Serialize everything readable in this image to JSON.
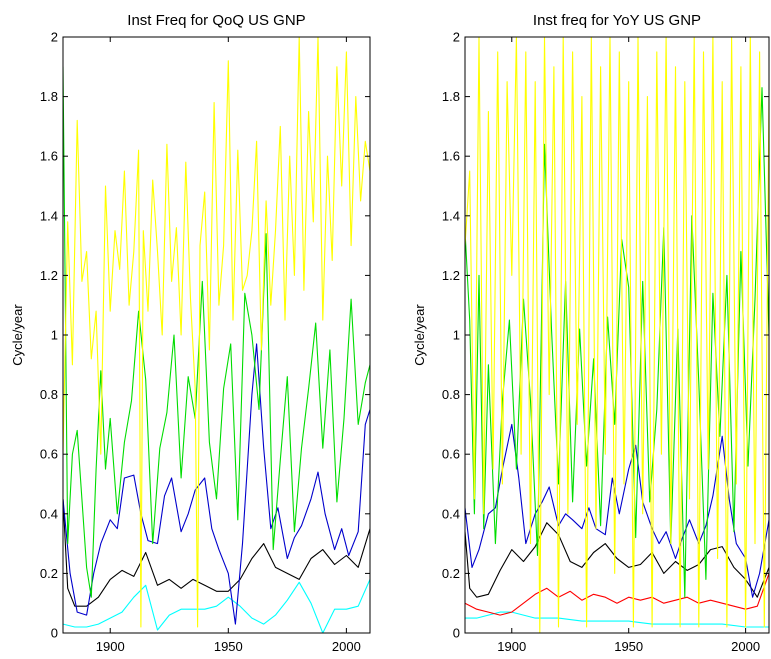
{
  "chart_data": [
    {
      "type": "line",
      "title": "Inst Freq for QoQ US GNP",
      "xlabel": "",
      "ylabel": "Cycle/year",
      "xlim": [
        1880,
        2010
      ],
      "ylim": [
        0,
        2
      ],
      "xticks": [
        1900,
        1950,
        2000
      ],
      "yticks": [
        0,
        0.2,
        0.4,
        0.6,
        0.8,
        1,
        1.2,
        1.4,
        1.6,
        1.8,
        2
      ],
      "grid": false,
      "series": [
        {
          "color": "#00FFFF",
          "x": [
            1880,
            1885,
            1890,
            1895,
            1900,
            1905,
            1910,
            1915,
            1920,
            1925,
            1930,
            1935,
            1940,
            1945,
            1950,
            1955,
            1960,
            1965,
            1970,
            1975,
            1980,
            1985,
            1990,
            1995,
            2000,
            2005,
            2010
          ],
          "y": [
            0.03,
            0.02,
            0.02,
            0.03,
            0.05,
            0.07,
            0.12,
            0.16,
            0.01,
            0.06,
            0.08,
            0.08,
            0.08,
            0.09,
            0.12,
            0.09,
            0.05,
            0.03,
            0.06,
            0.11,
            0.17,
            0.1,
            0.0,
            0.08,
            0.08,
            0.09,
            0.18
          ]
        },
        {
          "color": "#000000",
          "x": [
            1880,
            1882,
            1885,
            1890,
            1895,
            1900,
            1905,
            1910,
            1915,
            1920,
            1925,
            1930,
            1935,
            1940,
            1945,
            1950,
            1955,
            1960,
            1965,
            1970,
            1975,
            1980,
            1985,
            1990,
            1995,
            2000,
            2005,
            2010
          ],
          "y": [
            0.45,
            0.15,
            0.09,
            0.09,
            0.12,
            0.18,
            0.21,
            0.19,
            0.27,
            0.16,
            0.18,
            0.15,
            0.18,
            0.16,
            0.14,
            0.14,
            0.18,
            0.25,
            0.3,
            0.22,
            0.2,
            0.18,
            0.25,
            0.28,
            0.23,
            0.26,
            0.22,
            0.35
          ]
        },
        {
          "color": "#0000CC",
          "x": [
            1880,
            1883,
            1886,
            1890,
            1893,
            1896,
            1900,
            1903,
            1906,
            1910,
            1913,
            1916,
            1920,
            1923,
            1926,
            1930,
            1933,
            1936,
            1940,
            1943,
            1946,
            1950,
            1953,
            1956,
            1960,
            1962,
            1965,
            1968,
            1971,
            1975,
            1978,
            1981,
            1985,
            1988,
            1991,
            1995,
            1998,
            2001,
            2005,
            2008,
            2010
          ],
          "y": [
            0.45,
            0.2,
            0.07,
            0.06,
            0.2,
            0.3,
            0.38,
            0.35,
            0.52,
            0.53,
            0.4,
            0.31,
            0.3,
            0.46,
            0.52,
            0.34,
            0.4,
            0.48,
            0.52,
            0.35,
            0.28,
            0.2,
            0.03,
            0.3,
            0.8,
            0.97,
            0.62,
            0.35,
            0.42,
            0.25,
            0.32,
            0.36,
            0.45,
            0.54,
            0.4,
            0.28,
            0.35,
            0.26,
            0.34,
            0.7,
            0.75
          ]
        },
        {
          "color": "#00DD00",
          "x": [
            1880,
            1882,
            1884,
            1886,
            1888,
            1890,
            1892,
            1894,
            1896,
            1898,
            1900,
            1903,
            1906,
            1909,
            1912,
            1915,
            1918,
            1921,
            1924,
            1927,
            1930,
            1933,
            1936,
            1939,
            1942,
            1945,
            1948,
            1951,
            1954,
            1957,
            1960,
            1963,
            1966,
            1969,
            1972,
            1975,
            1978,
            1981,
            1984,
            1987,
            1990,
            1993,
            1996,
            1999,
            2002,
            2005,
            2008,
            2010
          ],
          "y": [
            1.9,
            0.3,
            0.6,
            0.68,
            0.45,
            0.22,
            0.12,
            0.55,
            0.88,
            0.55,
            0.72,
            0.4,
            0.64,
            0.78,
            1.08,
            0.85,
            0.3,
            0.62,
            0.74,
            1.0,
            0.52,
            0.86,
            0.72,
            1.18,
            0.64,
            0.45,
            0.82,
            0.97,
            0.38,
            1.14,
            1.0,
            0.75,
            1.34,
            0.28,
            0.58,
            0.86,
            0.34,
            0.62,
            0.82,
            1.04,
            0.62,
            0.95,
            0.44,
            0.72,
            1.12,
            0.7,
            0.84,
            0.9
          ]
        },
        {
          "color": "#FFFF00",
          "x": [
            1880,
            1882,
            1884,
            1886,
            1888,
            1890,
            1892,
            1894,
            1896,
            1898,
            1900,
            1902,
            1904,
            1906,
            1908,
            1910,
            1912,
            1913,
            1914,
            1916,
            1918,
            1920,
            1922,
            1924,
            1926,
            1928,
            1930,
            1932,
            1934,
            1936,
            1937,
            1938,
            1940,
            1942,
            1944,
            1946,
            1948,
            1950,
            1952,
            1954,
            1956,
            1958,
            1960,
            1962,
            1964,
            1966,
            1968,
            1970,
            1972,
            1974,
            1976,
            1978,
            1980,
            1982,
            1984,
            1986,
            1988,
            1990,
            1992,
            1994,
            1996,
            1998,
            2000,
            2002,
            2004,
            2006,
            2008,
            2010
          ],
          "y": [
            0.6,
            1.38,
            0.9,
            1.72,
            1.18,
            1.28,
            0.92,
            1.08,
            0.6,
            1.5,
            1.08,
            1.35,
            1.22,
            1.55,
            1.1,
            1.28,
            1.62,
            0.02,
            1.35,
            1.08,
            1.52,
            1.28,
            1.0,
            1.64,
            1.18,
            1.36,
            1.0,
            1.58,
            1.12,
            0.82,
            0.02,
            1.3,
            1.48,
            0.95,
            1.78,
            1.1,
            1.3,
            1.92,
            1.05,
            1.62,
            1.15,
            1.2,
            1.35,
            1.65,
            0.95,
            1.45,
            1.1,
            1.35,
            1.7,
            1.05,
            1.6,
            1.2,
            2.0,
            1.15,
            1.75,
            1.38,
            2.0,
            1.05,
            1.6,
            1.25,
            1.9,
            1.5,
            1.95,
            1.3,
            1.8,
            1.45,
            1.65,
            1.55
          ]
        }
      ]
    },
    {
      "type": "line",
      "title": "Inst freq for YoY US GNP",
      "xlabel": "",
      "ylabel": "Cycle/year",
      "xlim": [
        1880,
        2010
      ],
      "ylim": [
        0,
        2
      ],
      "xticks": [
        1900,
        1950,
        2000
      ],
      "yticks": [
        0,
        0.2,
        0.4,
        0.6,
        0.8,
        1,
        1.2,
        1.4,
        1.6,
        1.8,
        2
      ],
      "grid": false,
      "series": [
        {
          "color": "#00FFFF",
          "x": [
            1880,
            1885,
            1890,
            1895,
            1900,
            1905,
            1910,
            1920,
            1930,
            1940,
            1950,
            1960,
            1970,
            1980,
            1990,
            2000,
            2010
          ],
          "y": [
            0.05,
            0.05,
            0.06,
            0.07,
            0.07,
            0.06,
            0.05,
            0.05,
            0.04,
            0.04,
            0.04,
            0.03,
            0.03,
            0.03,
            0.03,
            0.02,
            0.02
          ]
        },
        {
          "color": "#FF0000",
          "x": [
            1880,
            1885,
            1890,
            1895,
            1900,
            1905,
            1910,
            1915,
            1920,
            1925,
            1930,
            1935,
            1940,
            1945,
            1950,
            1955,
            1960,
            1965,
            1970,
            1975,
            1980,
            1985,
            1990,
            1995,
            2000,
            2005,
            2010
          ],
          "y": [
            0.1,
            0.08,
            0.07,
            0.06,
            0.07,
            0.1,
            0.13,
            0.15,
            0.12,
            0.14,
            0.11,
            0.13,
            0.12,
            0.1,
            0.12,
            0.11,
            0.12,
            0.1,
            0.11,
            0.12,
            0.1,
            0.11,
            0.1,
            0.09,
            0.08,
            0.09,
            0.2
          ]
        },
        {
          "color": "#000000",
          "x": [
            1880,
            1882,
            1885,
            1890,
            1895,
            1900,
            1905,
            1910,
            1915,
            1920,
            1925,
            1930,
            1935,
            1940,
            1945,
            1950,
            1955,
            1960,
            1965,
            1970,
            1975,
            1980,
            1985,
            1990,
            1995,
            2000,
            2005,
            2010
          ],
          "y": [
            0.34,
            0.15,
            0.12,
            0.13,
            0.21,
            0.28,
            0.24,
            0.29,
            0.37,
            0.33,
            0.24,
            0.22,
            0.27,
            0.3,
            0.25,
            0.22,
            0.23,
            0.27,
            0.2,
            0.24,
            0.21,
            0.23,
            0.28,
            0.29,
            0.22,
            0.18,
            0.12,
            0.22
          ]
        },
        {
          "color": "#0000CC",
          "x": [
            1880,
            1883,
            1886,
            1890,
            1893,
            1896,
            1900,
            1903,
            1906,
            1910,
            1913,
            1916,
            1920,
            1923,
            1926,
            1930,
            1933,
            1936,
            1940,
            1943,
            1946,
            1950,
            1953,
            1956,
            1960,
            1963,
            1966,
            1970,
            1973,
            1976,
            1980,
            1983,
            1986,
            1990,
            1993,
            1996,
            2000,
            2003,
            2006,
            2010
          ],
          "y": [
            0.42,
            0.22,
            0.28,
            0.4,
            0.42,
            0.55,
            0.7,
            0.52,
            0.3,
            0.4,
            0.44,
            0.49,
            0.36,
            0.4,
            0.38,
            0.35,
            0.42,
            0.35,
            0.33,
            0.52,
            0.4,
            0.55,
            0.63,
            0.44,
            0.35,
            0.3,
            0.34,
            0.25,
            0.32,
            0.38,
            0.3,
            0.36,
            0.46,
            0.66,
            0.45,
            0.3,
            0.25,
            0.12,
            0.2,
            0.38
          ]
        },
        {
          "color": "#00DD00",
          "x": [
            1880,
            1882,
            1884,
            1886,
            1888,
            1890,
            1893,
            1896,
            1899,
            1902,
            1905,
            1908,
            1911,
            1914,
            1917,
            1920,
            1923,
            1926,
            1929,
            1932,
            1935,
            1938,
            1941,
            1944,
            1947,
            1950,
            1953,
            1956,
            1959,
            1962,
            1965,
            1968,
            1971,
            1974,
            1977,
            1980,
            1983,
            1986,
            1989,
            1992,
            1995,
            1998,
            2001,
            2004,
            2007,
            2010
          ],
          "y": [
            1.35,
            1.05,
            0.4,
            1.2,
            0.35,
            0.9,
            0.3,
            0.78,
            1.05,
            0.55,
            1.12,
            0.78,
            0.26,
            1.64,
            1.02,
            0.5,
            1.18,
            0.44,
            1.02,
            0.56,
            0.92,
            0.36,
            1.06,
            0.7,
            1.32,
            1.16,
            0.32,
            1.18,
            0.44,
            0.75,
            1.36,
            0.3,
            1.02,
            0.12,
            1.4,
            0.84,
            0.18,
            1.14,
            0.66,
            1.2,
            0.34,
            1.28,
            0.56,
            1.12,
            1.83,
            1.0
          ]
        },
        {
          "color": "#FFFF00",
          "x": [
            1880,
            1882,
            1884,
            1886,
            1888,
            1890,
            1892,
            1894,
            1896,
            1898,
            1900,
            1902,
            1904,
            1906,
            1908,
            1910,
            1912,
            1914,
            1916,
            1918,
            1920,
            1922,
            1924,
            1926,
            1928,
            1930,
            1932,
            1934,
            1936,
            1938,
            1940,
            1942,
            1944,
            1946,
            1948,
            1950,
            1952,
            1954,
            1956,
            1958,
            1960,
            1962,
            1964,
            1966,
            1968,
            1970,
            1972,
            1974,
            1976,
            1978,
            1980,
            1982,
            1984,
            1986,
            1988,
            1990,
            1992,
            1994,
            1996,
            1998,
            2000,
            2002,
            2004,
            2006,
            2008,
            2010
          ],
          "y": [
            1.3,
            1.55,
            0.45,
            2.0,
            0.4,
            1.75,
            0.55,
            1.95,
            0.5,
            1.85,
            1.2,
            2.0,
            0.6,
            1.95,
            0.3,
            1.85,
            0.0,
            2.0,
            0.8,
            1.9,
            0.02,
            2.0,
            0.4,
            1.95,
            0.7,
            1.8,
            0.02,
            2.0,
            0.35,
            1.9,
            0.6,
            2.0,
            0.2,
            1.95,
            0.5,
            1.85,
            0.02,
            2.0,
            0.4,
            1.8,
            0.02,
            1.95,
            0.6,
            2.0,
            0.3,
            1.9,
            0.02,
            1.85,
            0.45,
            2.0,
            0.02,
            1.95,
            0.55,
            2.0,
            0.25,
            1.85,
            0.02,
            2.0,
            0.5,
            1.9,
            0.02,
            2.0,
            0.3,
            1.95,
            0.02,
            1.8
          ]
        }
      ]
    }
  ]
}
